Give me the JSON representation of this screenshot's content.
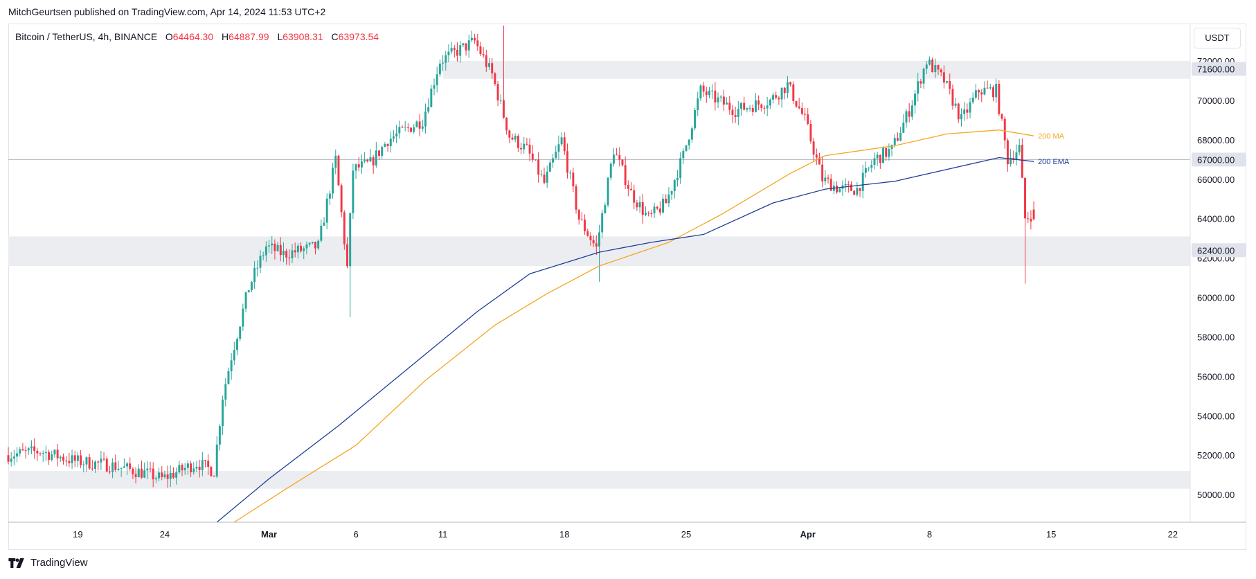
{
  "header": {
    "published": "MitchGeurtsen published on TradingView.com, Apr 14, 2024 11:53 UTC+2"
  },
  "symbol": {
    "name": "Bitcoin / TetherUS, 4h, BINANCE",
    "o_label": "O",
    "o": "64464.30",
    "h_label": "H",
    "h": "64887.99",
    "l_label": "L",
    "l": "63908.31",
    "c_label": "C",
    "c": "63973.54"
  },
  "currency": "USDT",
  "footer": {
    "brand": "TradingView",
    "logo_icon": "tradingview-logo-icon"
  },
  "colors": {
    "up": "#26a69a",
    "down": "#f23645",
    "ma": "#f5a623",
    "ema": "#1f3c99",
    "zone": "#ebedf0",
    "label_bg": "#e0e3eb"
  },
  "chart_data": {
    "type": "candlestick",
    "title": "Bitcoin / TetherUS, 4h, BINANCE",
    "x_ticks": [
      "19",
      "24",
      "Mar",
      "6",
      "11",
      "18",
      "25",
      "Apr",
      "8",
      "15",
      "22"
    ],
    "x_tick_dates": [
      "2024-02-19",
      "2024-02-24",
      "2024-03-01",
      "2024-03-06",
      "2024-03-11",
      "2024-03-18",
      "2024-03-25",
      "2024-04-01",
      "2024-04-08",
      "2024-04-15",
      "2024-04-22"
    ],
    "x_range": [
      "2024-02-15",
      "2024-04-23"
    ],
    "y_ticks": [
      50000,
      52000,
      54000,
      56000,
      58000,
      60000,
      62000,
      64000,
      66000,
      68000,
      70000,
      72000
    ],
    "y_range": [
      48600,
      73900
    ],
    "grid": false,
    "price_labels": [
      {
        "value": 71600,
        "text": "71600.00"
      },
      {
        "value": 67000,
        "text": "67000.00"
      },
      {
        "value": 62400,
        "text": "62400.00"
      }
    ],
    "horizontal_line": 67000,
    "zones": [
      {
        "from": 71100,
        "to": 72000
      },
      {
        "from": 61600,
        "to": 63100
      },
      {
        "from": 50300,
        "to": 51200
      }
    ],
    "price_path": [
      [
        "2024-02-15",
        52000
      ],
      [
        "2024-02-17",
        52200
      ],
      [
        "2024-02-19",
        51700
      ],
      [
        "2024-02-21",
        51500
      ],
      [
        "2024-02-23",
        51100
      ],
      [
        "2024-02-24",
        50800
      ],
      [
        "2024-02-26",
        51600
      ],
      [
        "2024-02-27",
        51200
      ],
      [
        "2024-02-27T12:00",
        55000
      ],
      [
        "2024-02-28",
        57000
      ],
      [
        "2024-02-29",
        60500
      ],
      [
        "2024-03-01",
        62600
      ],
      [
        "2024-03-02",
        62200
      ],
      [
        "2024-03-04",
        62600
      ],
      [
        "2024-03-05",
        67000
      ],
      [
        "2024-03-05T16:00",
        61500
      ],
      [
        "2024-03-06",
        66500
      ],
      [
        "2024-03-07",
        66800
      ],
      [
        "2024-03-08",
        68000
      ],
      [
        "2024-03-10",
        69000
      ],
      [
        "2024-03-11",
        72000
      ],
      [
        "2024-03-13",
        73000
      ],
      [
        "2024-03-14",
        71300
      ],
      [
        "2024-03-15",
        68200
      ],
      [
        "2024-03-16",
        67500
      ],
      [
        "2024-03-17",
        65800
      ],
      [
        "2024-03-18",
        68000
      ],
      [
        "2024-03-19",
        64000
      ],
      [
        "2024-03-20",
        62500
      ],
      [
        "2024-03-21",
        67500
      ],
      [
        "2024-03-22",
        65300
      ],
      [
        "2024-03-23",
        64000
      ],
      [
        "2024-03-24",
        64800
      ],
      [
        "2024-03-25",
        67200
      ],
      [
        "2024-03-26",
        70500
      ],
      [
        "2024-03-28",
        69500
      ],
      [
        "2024-03-30",
        70000
      ],
      [
        "2024-03-31",
        70800
      ],
      [
        "2024-04-01",
        69000
      ],
      [
        "2024-04-02",
        66000
      ],
      [
        "2024-04-03",
        65500
      ],
      [
        "2024-04-04",
        65500
      ],
      [
        "2024-04-05",
        67000
      ],
      [
        "2024-04-06",
        67500
      ],
      [
        "2024-04-07",
        69500
      ],
      [
        "2024-04-08",
        72000
      ],
      [
        "2024-04-09",
        71000
      ],
      [
        "2024-04-10",
        69000
      ],
      [
        "2024-04-11",
        70500
      ],
      [
        "2024-04-12",
        70500
      ],
      [
        "2024-04-12T16:00",
        67000
      ],
      [
        "2024-04-13",
        67300
      ],
      [
        "2024-04-13T08:00",
        67600
      ],
      [
        "2024-04-13T16:00",
        64000
      ],
      [
        "2024-04-14",
        64200
      ]
    ],
    "wick_spikes": [
      {
        "date": "2024-03-05T16:00",
        "low": 59000
      },
      {
        "date": "2024-03-14T12:00",
        "high": 73800
      },
      {
        "date": "2024-03-20",
        "low": 60800
      },
      {
        "date": "2024-04-13T12:00",
        "low": 60700
      }
    ],
    "last_candle": {
      "date": "2024-04-14",
      "open": 64464.3,
      "high": 64887.99,
      "low": 63908.31,
      "close": 63973.54
    },
    "series": [
      {
        "name": "200 MA",
        "points": [
          [
            "2024-02-28",
            48600
          ],
          [
            "2024-03-02",
            50300
          ],
          [
            "2024-03-06",
            52500
          ],
          [
            "2024-03-10",
            55800
          ],
          [
            "2024-03-14",
            58600
          ],
          [
            "2024-03-17",
            60200
          ],
          [
            "2024-03-20",
            61600
          ],
          [
            "2024-03-24",
            62800
          ],
          [
            "2024-03-27",
            64200
          ],
          [
            "2024-03-31",
            66300
          ],
          [
            "2024-04-02",
            67200
          ],
          [
            "2024-04-06",
            67700
          ],
          [
            "2024-04-09",
            68300
          ],
          [
            "2024-04-12",
            68500
          ],
          [
            "2024-04-14",
            68200
          ]
        ]
      },
      {
        "name": "200 EMA",
        "points": [
          [
            "2024-02-27",
            48600
          ],
          [
            "2024-03-01",
            50800
          ],
          [
            "2024-03-05",
            53500
          ],
          [
            "2024-03-09",
            56400
          ],
          [
            "2024-03-13",
            59300
          ],
          [
            "2024-03-16",
            61200
          ],
          [
            "2024-03-20",
            62300
          ],
          [
            "2024-03-23",
            62800
          ],
          [
            "2024-03-26",
            63200
          ],
          [
            "2024-03-30",
            64800
          ],
          [
            "2024-04-02",
            65500
          ],
          [
            "2024-04-06",
            65900
          ],
          [
            "2024-04-09",
            66500
          ],
          [
            "2024-04-12",
            67100
          ],
          [
            "2024-04-14",
            66900
          ]
        ]
      }
    ]
  }
}
